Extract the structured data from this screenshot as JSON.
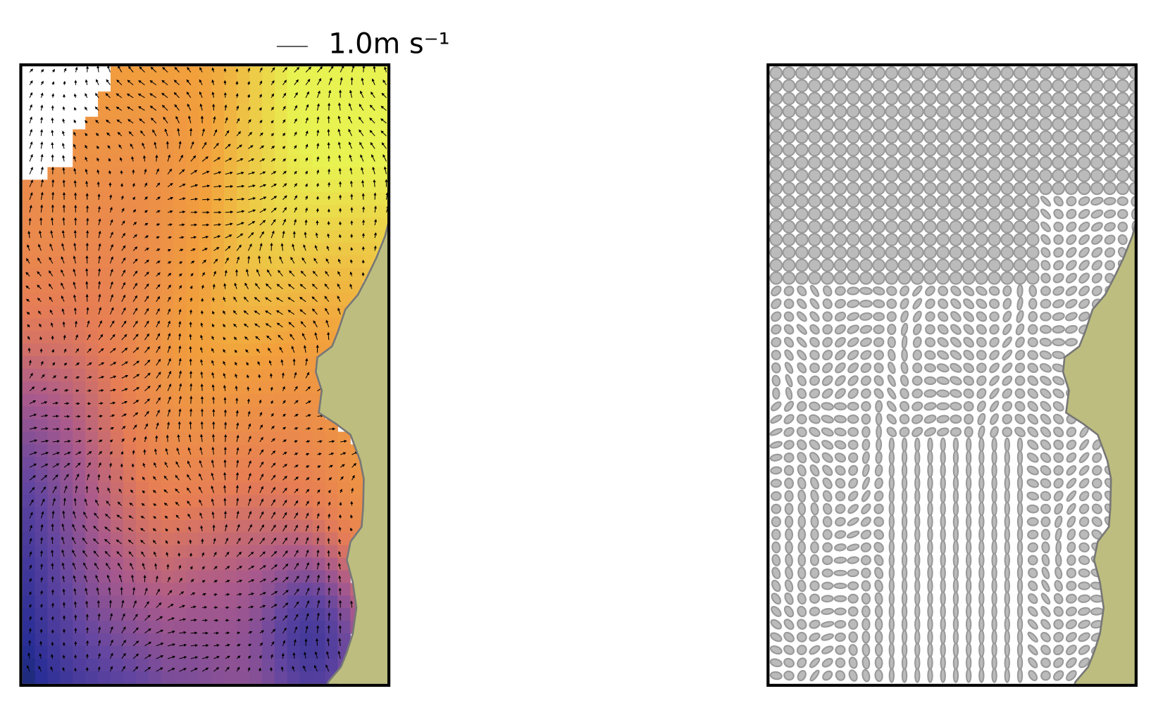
{
  "quiver_key": {
    "label": "1.0m s⁻¹"
  }
}
